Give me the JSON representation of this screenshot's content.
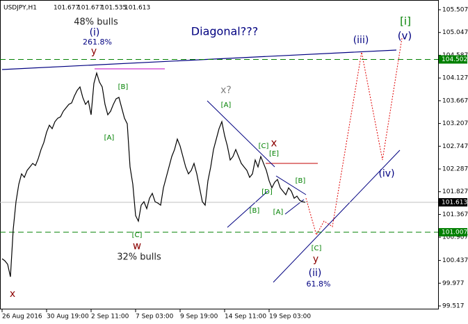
{
  "chart_data": {
    "type": "line",
    "title": "USDJPY,H1",
    "ohlc_header": [
      "101.677",
      "101.677",
      "101.535",
      "101.613"
    ],
    "series": [
      {
        "name": "USDJPY",
        "color": "#000000",
        "values": [
          100.472,
          100.43,
          100.359,
          100.106,
          101.063,
          101.625,
          101.977,
          102.188,
          102.117,
          102.258,
          102.328,
          102.399,
          102.357,
          102.497,
          102.68,
          102.821,
          103.032,
          103.172,
          103.102,
          103.243,
          103.313,
          103.341,
          103.454,
          103.524,
          103.594,
          103.622,
          103.763,
          103.876,
          103.946,
          103.735,
          103.594,
          103.665,
          103.383,
          104.016,
          104.227,
          104.044,
          103.946,
          103.594,
          103.383,
          103.454,
          103.594,
          103.707,
          103.735,
          103.524,
          103.313,
          103.2,
          102.328,
          101.977,
          101.344,
          101.231,
          101.555,
          101.625,
          101.484,
          101.695,
          101.794,
          101.625,
          101.597,
          101.555,
          101.906,
          102.117,
          102.328,
          102.539,
          102.68,
          102.891,
          102.75,
          102.539,
          102.328,
          102.188,
          102.258,
          102.399,
          102.188,
          101.906,
          101.625,
          101.555,
          102.047,
          102.328,
          102.68,
          102.891,
          103.102,
          103.243,
          102.961,
          102.75,
          102.469,
          102.539,
          102.68,
          102.539,
          102.399,
          102.328,
          102.258,
          102.117,
          102.188,
          102.469,
          102.328,
          102.539,
          102.399,
          102.258,
          102.047,
          101.906,
          102.019,
          102.075,
          101.906,
          101.836,
          101.766,
          101.906,
          101.836,
          101.695,
          101.738,
          101.653,
          101.625,
          101.613
        ]
      }
    ],
    "ylim": [
      99.447,
      105.704
    ],
    "yticks": [
      105.507,
      105.047,
      104.587,
      104.127,
      103.667,
      103.207,
      102.747,
      102.287,
      101.827,
      101.367,
      100.907,
      100.437,
      99.977,
      99.517
    ],
    "xticks": [
      {
        "value": 0,
        "label": "26 Aug 2016"
      },
      {
        "value": 16,
        "label": "30 Aug 19:00"
      },
      {
        "value": 32,
        "label": "2 Sep 11:00"
      },
      {
        "value": 48,
        "label": "7 Sep 03:00"
      },
      {
        "value": 64,
        "label": "9 Sep 19:00"
      },
      {
        "value": 80,
        "label": "14 Sep 11:00"
      },
      {
        "value": 96,
        "label": "19 Sep 03:00"
      }
    ],
    "levels": [
      {
        "value": 104.502,
        "color": "#008000",
        "style": "dashed",
        "label": "104.502"
      },
      {
        "value": 101.007,
        "color": "#008000",
        "style": "dashed",
        "label": "101.007"
      },
      {
        "value": 101.613,
        "color": "#c0c0c0",
        "style": "solid",
        "label": "101.613"
      }
    ],
    "annotations": [
      "48% bulls",
      "(i)",
      "261.8%",
      "y",
      "Diagonal???",
      "[B]",
      "[A]",
      "x?",
      "[A]",
      "[C]",
      "x",
      "[E]",
      "[B]",
      "[D]",
      "[B]",
      "[A]",
      "[C]",
      "w",
      "32% bulls",
      "[C]",
      "y",
      "(ii)",
      "61.8%",
      "x",
      "(iii)",
      "[i]",
      "(v)",
      "(iv)"
    ]
  }
}
